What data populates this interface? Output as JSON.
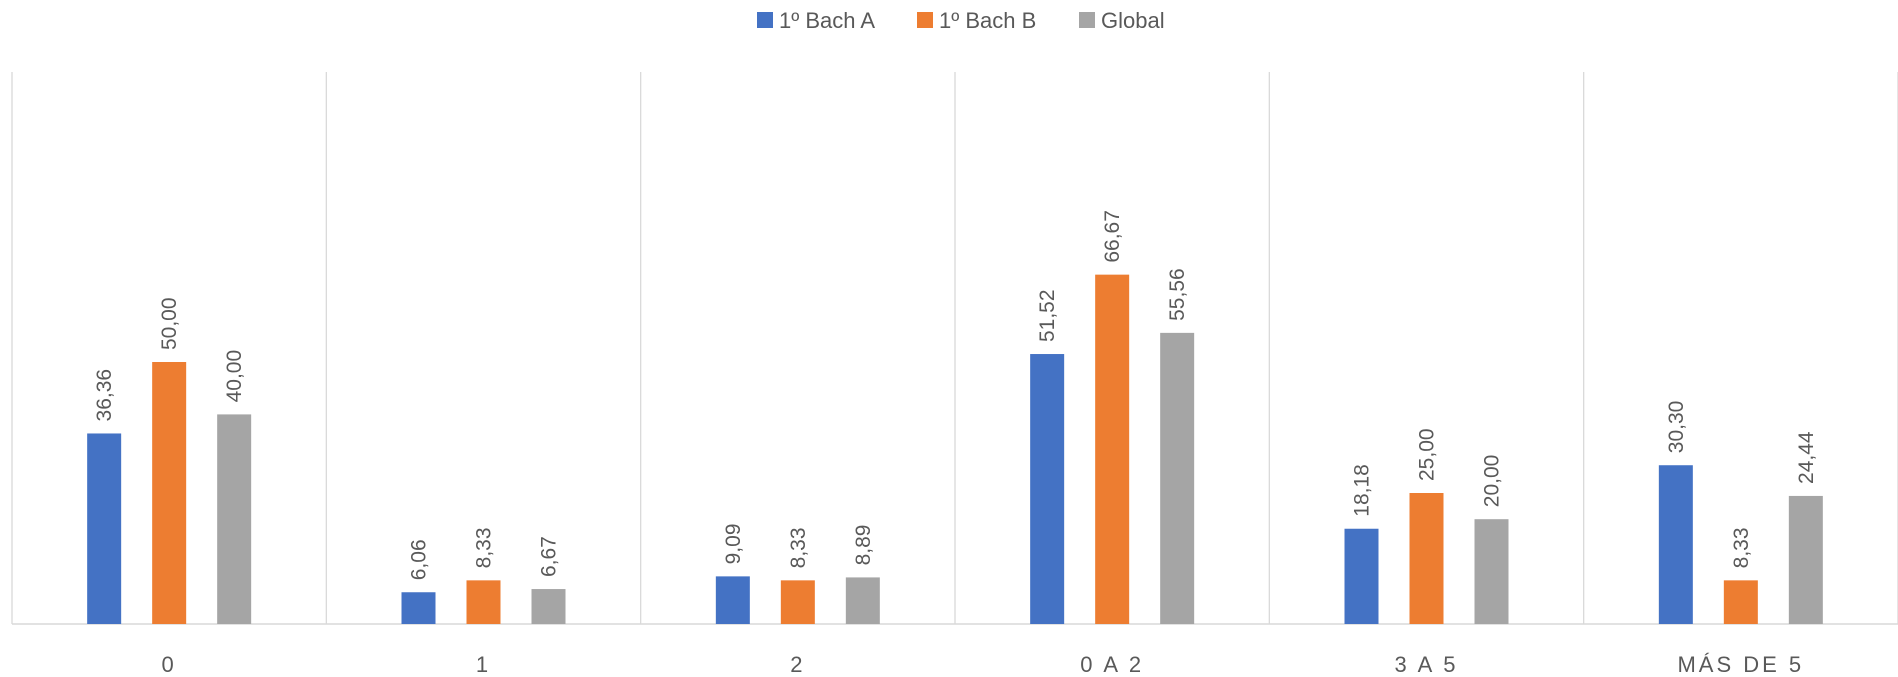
{
  "chart_data": {
    "type": "bar",
    "categories": [
      "0",
      "1",
      "2",
      "0 A 2",
      "3 A 5",
      "MÁS DE 5"
    ],
    "series": [
      {
        "name": "1º Bach A",
        "color": "#4472C4",
        "values": [
          36.36,
          6.06,
          9.09,
          51.52,
          18.18,
          30.3
        ],
        "labels": [
          "36,36",
          "6,06",
          "9,09",
          "51,52",
          "18,18",
          "30,30"
        ]
      },
      {
        "name": "1º Bach B",
        "color": "#ED7D31",
        "values": [
          50.0,
          8.33,
          8.33,
          66.67,
          25.0,
          8.33
        ],
        "labels": [
          "50,00",
          "8,33",
          "8,33",
          "66,67",
          "25,00",
          "8,33"
        ]
      },
      {
        "name": "Global",
        "color": "#A5A5A5",
        "values": [
          40.0,
          6.67,
          8.89,
          55.56,
          20.0,
          24.44
        ],
        "labels": [
          "40,00",
          "6,67",
          "8,89",
          "55,56",
          "20,00",
          "24,44"
        ]
      }
    ],
    "title": "",
    "xlabel": "",
    "ylabel": "",
    "ylim": [
      0,
      70
    ],
    "legend_position": "top",
    "grid": "vertical category separators",
    "data_labels": "rotated vertical above bars"
  }
}
